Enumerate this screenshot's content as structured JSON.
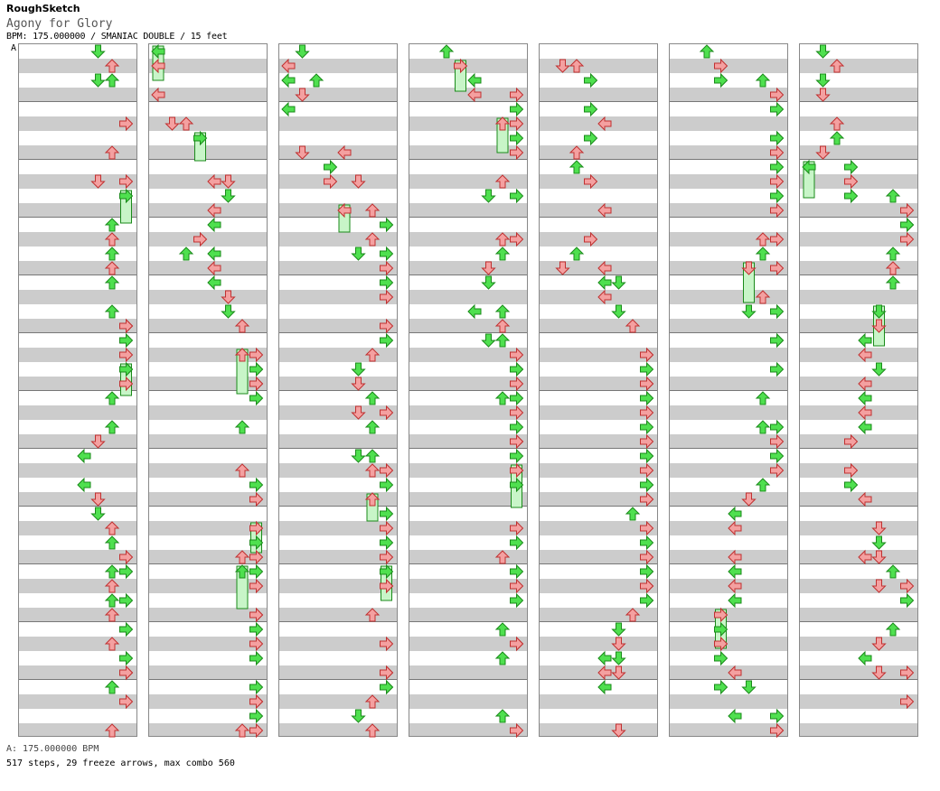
{
  "header": {
    "site": "RoughSketch",
    "title": "Agony for Glory",
    "meta": "BPM: 175.000000 / SMANIAC DOUBLE / 15 feet",
    "marker": "A"
  },
  "footer": {
    "bpm_note": "A: 175.000000 BPM",
    "summary": "517 steps, 29 freeze arrows, max combo 560"
  },
  "colors": {
    "red_arrow": "#f4a0a0",
    "red_stroke": "#c03030",
    "green_arrow": "#4fe04f",
    "green_stroke": "#1a8a1a",
    "freeze_fill": "#c8f5c8",
    "band_gray": "#cccccc"
  },
  "chart": {
    "panels": 8,
    "measures_per_column": 12,
    "lanes": 8,
    "icons": [
      "arrow-left-icon",
      "arrow-down-icon",
      "arrow-up-icon",
      "arrow-right-icon",
      "freeze-arrow-icon"
    ]
  }
}
